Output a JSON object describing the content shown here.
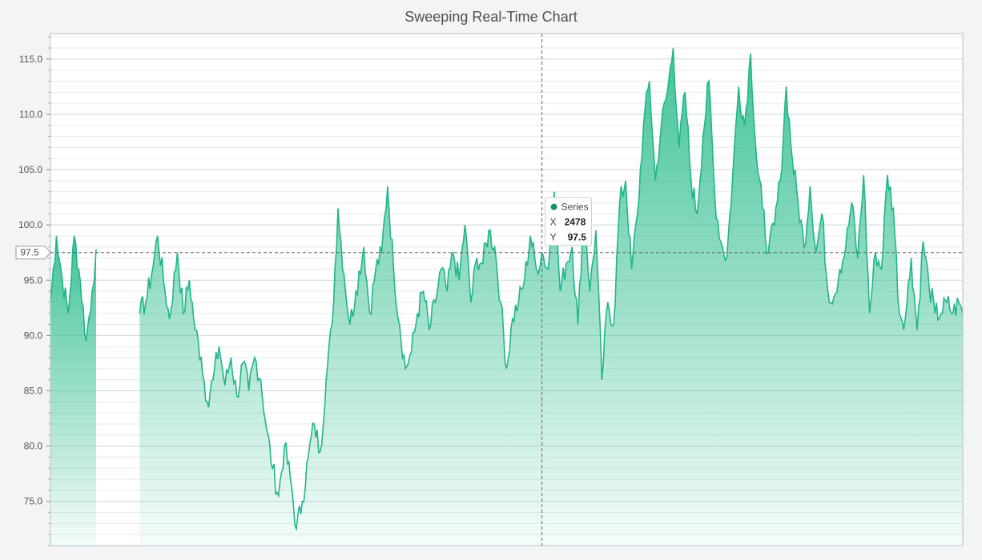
{
  "chart_data": {
    "type": "area",
    "title": "Sweeping Real-Time Chart",
    "xlabel": "",
    "ylabel": "",
    "xlim": [
      0,
      4600
    ],
    "ylim": [
      71,
      117.3
    ],
    "y_ticks": [
      "75.0",
      "80.0",
      "85.0",
      "90.0",
      "95.0",
      "100.0",
      "105.0",
      "110.0",
      "115.0"
    ],
    "grid": true,
    "legend": "none",
    "colors": {
      "line": "#21b589",
      "fill": "#38c093",
      "crosshair": "#666666"
    },
    "series": [
      {
        "segments": [
          {
            "x": [
              0,
              30,
              60,
              90,
              120,
              150,
              180,
              210,
              230
            ],
            "y": [
              93,
              99,
              95,
              92,
              99,
              95,
              89.5,
              94,
              97.8
            ]
          },
          {
            "x": [
              450,
              480,
              510,
              540,
              570,
              600,
              640,
              670,
              700,
              730,
              760,
              790,
              820,
              850,
              880,
              910,
              940,
              970,
              1000,
              1030,
              1060,
              1090,
              1120,
              1150,
              1180,
              1210,
              1240,
              1270,
              1300,
              1330,
              1360,
              1390,
              1420,
              1450,
              1480,
              1510,
              1540,
              1580,
              1610,
              1640,
              1670,
              1700,
              1730,
              1760,
              1790,
              1820,
              1850,
              1880,
              1910,
              1940,
              1970,
              2000,
              2030,
              2060,
              2090,
              2120,
              2150,
              2180,
              2210,
              2240,
              2270,
              2300,
              2330,
              2360,
              2390,
              2420,
              2450,
              2478,
              2510,
              2540,
              2570,
              2600,
              2630,
              2660,
              2690,
              2720,
              2750,
              2780,
              2810,
              2840,
              2870,
              2900,
              2930,
              2960,
              2990,
              3020,
              3050,
              3080,
              3110,
              3140,
              3170,
              3200,
              3230,
              3260,
              3290,
              3320,
              3350,
              3380,
              3410,
              3440,
              3470,
              3500,
              3530,
              3560,
              3590,
              3620,
              3650,
              3680,
              3710,
              3740,
              3770,
              3800,
              3830,
              3860,
              3890,
              3920,
              3950,
              3980,
              4010,
              4040,
              4070,
              4100,
              4130,
              4160,
              4190,
              4220,
              4250,
              4280,
              4310,
              4340,
              4370,
              4400,
              4430,
              4460,
              4490,
              4520,
              4550,
              4580,
              4600
            ],
            "y": [
              92,
              93,
              95.5,
              99,
              95,
              91.5,
              97.5,
              92,
              95,
              90.5,
              88,
              84,
              86,
              89,
              85.5,
              88,
              84.5,
              87.5,
              85,
              88,
              86,
              81.5,
              78,
              75.5,
              80,
              77,
              72.5,
              75,
              79,
              82,
              79.5,
              86,
              91,
              101.5,
              95.5,
              91,
              94,
              98,
              92,
              96,
              97.5,
              103.5,
              96,
              91,
              87,
              88.5,
              92,
              94,
              90.5,
              93,
              96,
              94,
              97.5,
              95,
              100,
              93,
              97,
              96.5,
              99.5,
              98,
              93,
              87,
              91.5,
              93,
              95,
              99,
              96,
              97.5,
              96,
              103,
              94,
              96.5,
              98,
              91,
              102,
              94,
              99.5,
              86,
              93,
              91,
              102,
              104,
              96,
              101,
              109,
              113,
              104,
              109,
              112,
              116,
              107,
              112,
              104,
              101,
              108,
              113,
              102.5,
              98.5,
              97,
              104.5,
              112.5,
              109,
              115.5,
              106,
              101.5,
              97.5,
              100,
              104,
              112.5,
              106,
              102,
              98,
              103.5,
              97.5,
              101,
              94,
              93.5,
              96,
              98,
              102,
              97,
              104.5,
              92,
              97.5,
              96,
              104.5,
              101.5,
              92,
              91.5,
              97,
              90.5,
              98.5,
              94.5,
              92,
              92,
              93,
              92,
              93,
              92
            ]
          }
        ]
      }
    ],
    "crosshair": {
      "x": 2478,
      "y": 97.5,
      "y_label": "97.5"
    },
    "tooltip": {
      "series_name": "Series",
      "x_label": "X",
      "x_value": "2478",
      "y_label": "Y",
      "y_value": "97.5"
    }
  }
}
